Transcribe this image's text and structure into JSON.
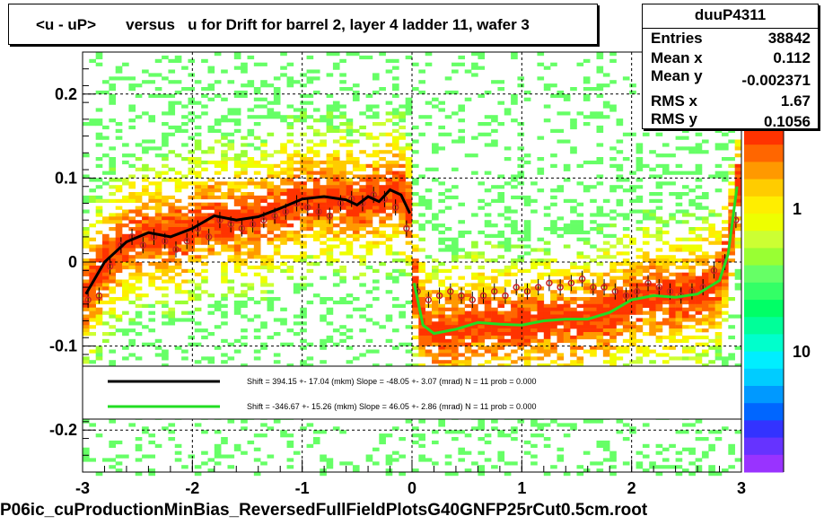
{
  "title": "<u - uP>       versus   u for Drift for barrel 2, layer 4 ladder 11, wafer 3",
  "footer": "P06ic_cuProductionMinBias_ReversedFullFieldPlotsG40GNFP25rCut0.5cm.root",
  "stats": {
    "name": "duuP4311",
    "rows": [
      {
        "label": "Entries",
        "value": "38842"
      },
      {
        "label": "Mean x",
        "value": "0.112"
      },
      {
        "label": "Mean y",
        "value": "-0.002371"
      },
      {
        "label": "RMS x",
        "value": "1.67"
      },
      {
        "label": "RMS y",
        "value": "0.1056"
      }
    ]
  },
  "legend": [
    {
      "color": "#000000",
      "text": "Shift =   394.15 +- 17.04 (mkm) Slope =   -48.05 +- 3.07 (mrad)  N = 11 prob = 0.000"
    },
    {
      "color": "#22dd22",
      "text": "Shift =  -346.67 +- 15.26 (mkm) Slope =    46.05 +- 2.86 (mrad)  N = 11 prob = 0.000"
    }
  ],
  "colors": {
    "black_fit": "#000000",
    "green_fit": "#22dd22",
    "marker": "#cc2222"
  },
  "chart_data": {
    "type": "heatmap",
    "title": "<u - uP>       versus   u for Drift for barrel 2, layer 4 ladder 11, wafer 3",
    "xlim": [
      -3,
      3
    ],
    "ylim": [
      -0.25,
      0.25
    ],
    "x_ticks": [
      "-3",
      "-2",
      "-1",
      "0",
      "1",
      "2",
      "3"
    ],
    "y_ticks": [
      "0.2",
      "0.1",
      "0",
      "-0.1",
      "-0.2"
    ],
    "z_scale": "log",
    "z_tick_labels": [
      "1",
      "10"
    ],
    "grid": true,
    "series": [
      {
        "name": "black fit",
        "x": [
          -2.97,
          -2.8,
          -2.6,
          -2.4,
          -2.2,
          -2.0,
          -1.8,
          -1.6,
          -1.4,
          -1.2,
          -1.0,
          -0.8,
          -0.6,
          -0.5,
          -0.4,
          -0.3,
          -0.2,
          -0.1,
          -0.02
        ],
        "y": [
          -0.038,
          0.0,
          0.024,
          0.035,
          0.03,
          0.04,
          0.055,
          0.05,
          0.054,
          0.064,
          0.075,
          0.078,
          0.074,
          0.068,
          0.078,
          0.072,
          0.086,
          0.08,
          0.058
        ]
      },
      {
        "name": "green fit",
        "x": [
          0.02,
          0.1,
          0.2,
          0.4,
          0.6,
          0.8,
          1.0,
          1.2,
          1.4,
          1.6,
          1.8,
          2.0,
          2.2,
          2.4,
          2.6,
          2.8,
          2.88,
          2.96
        ],
        "y": [
          -0.025,
          -0.075,
          -0.085,
          -0.08,
          -0.072,
          -0.074,
          -0.075,
          -0.07,
          -0.068,
          -0.068,
          -0.06,
          -0.045,
          -0.04,
          -0.042,
          -0.038,
          -0.022,
          0.01,
          0.09
        ]
      },
      {
        "name": "profile points",
        "x": [
          -2.95,
          -2.85,
          -2.75,
          -2.65,
          -2.55,
          -2.45,
          -2.35,
          -2.25,
          -2.15,
          -2.05,
          -1.95,
          -1.85,
          -1.75,
          -1.65,
          -1.55,
          -1.45,
          -1.35,
          -1.25,
          -1.15,
          -1.05,
          -0.95,
          -0.85,
          -0.75,
          -0.65,
          -0.55,
          -0.45,
          -0.35,
          -0.25,
          -0.15,
          -0.05,
          0.05,
          0.15,
          0.25,
          0.35,
          0.45,
          0.55,
          0.65,
          0.75,
          0.85,
          0.95,
          1.05,
          1.15,
          1.25,
          1.35,
          1.45,
          1.55,
          1.65,
          1.75,
          1.85,
          1.95,
          2.05,
          2.15,
          2.25,
          2.35,
          2.45,
          2.55,
          2.65,
          2.75,
          2.85,
          2.95
        ],
        "y": [
          -0.045,
          -0.04,
          -0.005,
          0.02,
          0.03,
          0.02,
          0.03,
          0.025,
          0.015,
          0.025,
          0.04,
          0.03,
          0.05,
          0.045,
          0.04,
          0.045,
          0.05,
          0.055,
          0.06,
          0.07,
          0.065,
          0.06,
          0.055,
          0.07,
          0.075,
          0.07,
          0.08,
          0.075,
          0.065,
          0.04,
          -0.035,
          -0.045,
          -0.04,
          -0.035,
          -0.04,
          -0.045,
          -0.04,
          -0.035,
          -0.04,
          -0.03,
          -0.035,
          -0.03,
          -0.025,
          -0.03,
          -0.025,
          -0.02,
          -0.03,
          -0.03,
          -0.035,
          -0.04,
          -0.035,
          -0.025,
          -0.03,
          -0.035,
          -0.04,
          -0.035,
          -0.03,
          -0.01,
          0.0,
          0.05
        ]
      }
    ]
  }
}
